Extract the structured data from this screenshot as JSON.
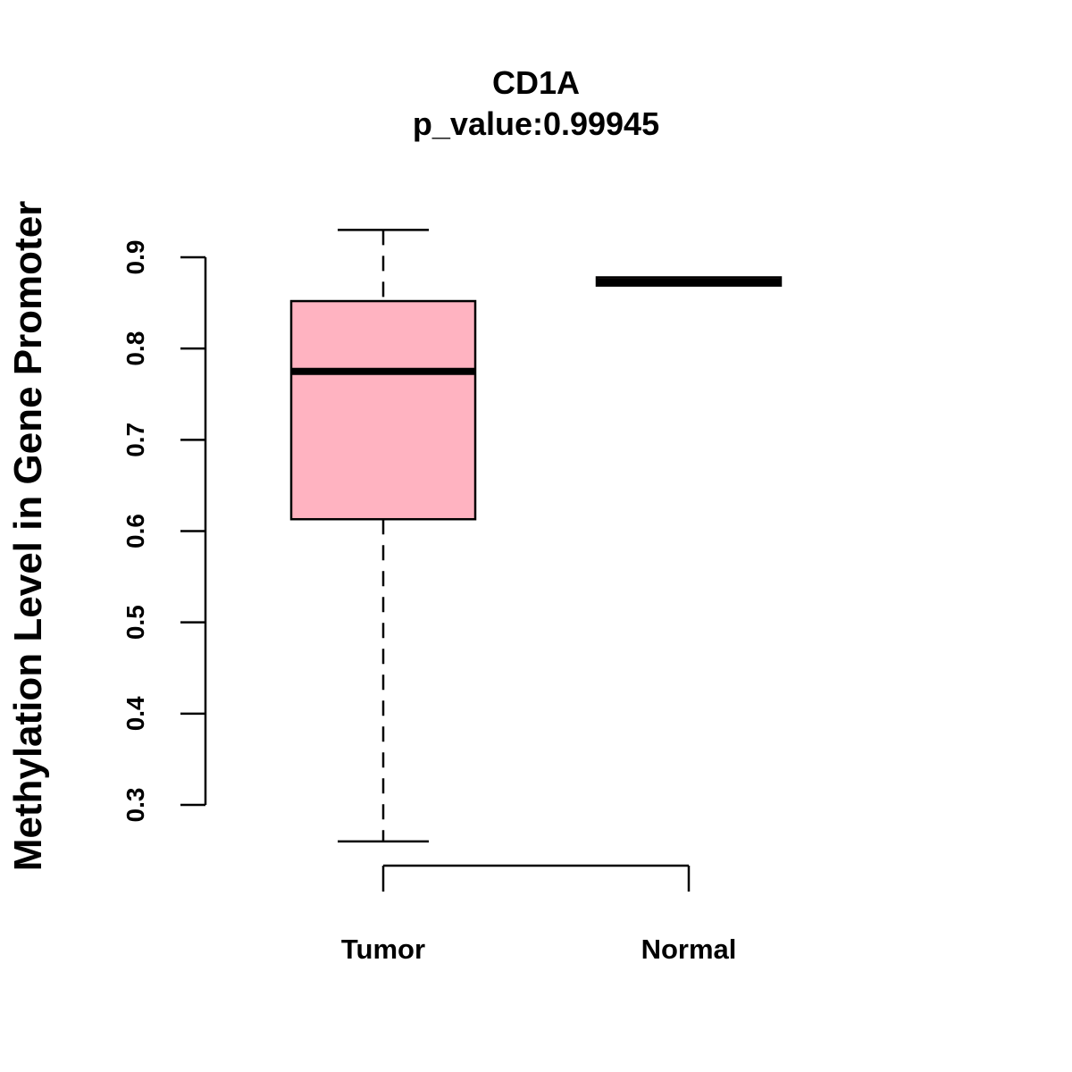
{
  "chart_data": {
    "type": "boxplot",
    "title": "CD1A",
    "subtitle": "p_value:0.99945",
    "xlabel": "",
    "ylabel": "Methylation Level in Gene Promoter",
    "ylim": [
      0.3,
      0.9
    ],
    "yticks": [
      "0.3",
      "0.4",
      "0.5",
      "0.6",
      "0.7",
      "0.8",
      "0.9"
    ],
    "categories": [
      "Tumor",
      "Normal"
    ],
    "boxes": [
      {
        "name": "Tumor",
        "min": 0.26,
        "q1": 0.613,
        "median": 0.775,
        "q3": 0.852,
        "max": 0.93,
        "fill": "#ffb3c1"
      },
      {
        "name": "Normal",
        "min": 0.869,
        "q1": 0.869,
        "median": 0.873,
        "q3": 0.878,
        "max": 0.878,
        "fill": "#ffb3c1"
      }
    ],
    "colors": {
      "box_fill": "#ffb3c1",
      "stroke": "#000000",
      "background": "#ffffff"
    }
  }
}
